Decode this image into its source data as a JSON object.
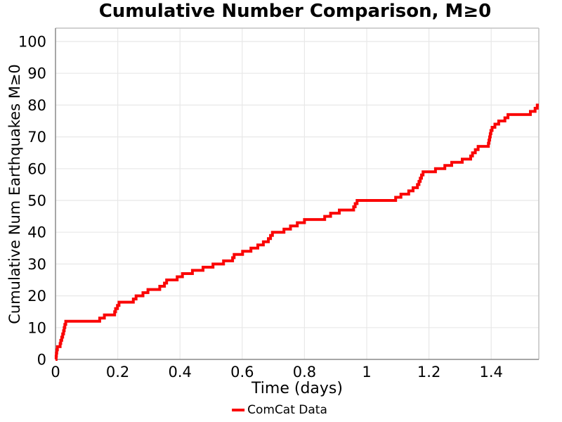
{
  "title": "Cumulative Number Comparison, M≥0",
  "chart_data": {
    "type": "line",
    "subtype": "step-post",
    "title": "Cumulative Number Comparison, M≥0",
    "xlabel": "Time (days)",
    "ylabel": "Cumulative Num Earthquakes M≥0",
    "xlim": [
      0,
      1.553
    ],
    "ylim": [
      0,
      104.2
    ],
    "grid": true,
    "x_ticks": [
      0,
      0.2,
      0.4,
      0.6,
      0.8,
      1,
      1.2,
      1.4
    ],
    "x_tick_labels": [
      "0",
      "0.2",
      "0.4",
      "0.6",
      "0.8",
      "1",
      "1.2",
      "1.4"
    ],
    "y_ticks": [
      0,
      10,
      20,
      30,
      40,
      50,
      60,
      70,
      80,
      90,
      100
    ],
    "y_tick_labels": [
      "0",
      "10",
      "20",
      "30",
      "40",
      "50",
      "60",
      "70",
      "80",
      "90",
      "100"
    ],
    "legend": {
      "position": "bottom-center",
      "entries": [
        "ComCat Data"
      ]
    },
    "series": [
      {
        "name": "ComCat Data",
        "color": "#fa0505",
        "linewidth": 4,
        "start": [
          0,
          0
        ],
        "end_t": 1.553,
        "points": [
          [
            0.002,
            1
          ],
          [
            0.003,
            2
          ],
          [
            0.004,
            3
          ],
          [
            0.006,
            4
          ],
          [
            0.015,
            5
          ],
          [
            0.017,
            6
          ],
          [
            0.02,
            7
          ],
          [
            0.023,
            8
          ],
          [
            0.026,
            9
          ],
          [
            0.028,
            10
          ],
          [
            0.03,
            11
          ],
          [
            0.033,
            12
          ],
          [
            0.142,
            13
          ],
          [
            0.157,
            14
          ],
          [
            0.19,
            15
          ],
          [
            0.193,
            16
          ],
          [
            0.199,
            17
          ],
          [
            0.204,
            18
          ],
          [
            0.25,
            19
          ],
          [
            0.259,
            20
          ],
          [
            0.281,
            21
          ],
          [
            0.297,
            22
          ],
          [
            0.335,
            23
          ],
          [
            0.35,
            24
          ],
          [
            0.357,
            25
          ],
          [
            0.391,
            26
          ],
          [
            0.408,
            27
          ],
          [
            0.44,
            28
          ],
          [
            0.474,
            29
          ],
          [
            0.506,
            30
          ],
          [
            0.54,
            31
          ],
          [
            0.569,
            32
          ],
          [
            0.574,
            33
          ],
          [
            0.601,
            34
          ],
          [
            0.628,
            35
          ],
          [
            0.65,
            36
          ],
          [
            0.668,
            37
          ],
          [
            0.684,
            38
          ],
          [
            0.691,
            39
          ],
          [
            0.697,
            40
          ],
          [
            0.734,
            41
          ],
          [
            0.755,
            42
          ],
          [
            0.777,
            43
          ],
          [
            0.8,
            44
          ],
          [
            0.865,
            45
          ],
          [
            0.884,
            46
          ],
          [
            0.912,
            47
          ],
          [
            0.958,
            48
          ],
          [
            0.963,
            49
          ],
          [
            0.969,
            50
          ],
          [
            1.093,
            51
          ],
          [
            1.11,
            52
          ],
          [
            1.135,
            53
          ],
          [
            1.149,
            54
          ],
          [
            1.163,
            55
          ],
          [
            1.168,
            56
          ],
          [
            1.172,
            57
          ],
          [
            1.176,
            58
          ],
          [
            1.181,
            59
          ],
          [
            1.221,
            60
          ],
          [
            1.251,
            61
          ],
          [
            1.273,
            62
          ],
          [
            1.307,
            63
          ],
          [
            1.334,
            64
          ],
          [
            1.34,
            65
          ],
          [
            1.349,
            66
          ],
          [
            1.358,
            67
          ],
          [
            1.391,
            68
          ],
          [
            1.393,
            69
          ],
          [
            1.395,
            70
          ],
          [
            1.397,
            71
          ],
          [
            1.399,
            72
          ],
          [
            1.403,
            73
          ],
          [
            1.412,
            74
          ],
          [
            1.424,
            75
          ],
          [
            1.444,
            76
          ],
          [
            1.454,
            77
          ],
          [
            1.526,
            78
          ],
          [
            1.541,
            79
          ],
          [
            1.548,
            80
          ]
        ]
      }
    ],
    "colors": {
      "line": "#fa0505",
      "grid": "#e8e8e8",
      "spine_left_bottom": "#8a8a8a",
      "spine_top_right": "#c2c2c2",
      "background": "#ffffff",
      "text": "#000000"
    }
  }
}
